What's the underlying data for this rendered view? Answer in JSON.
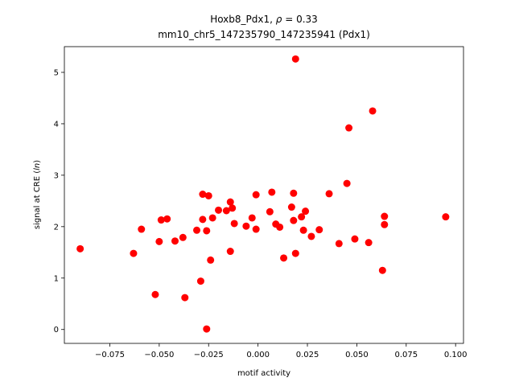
{
  "chart_data": {
    "type": "scatter",
    "title_line1": "Hoxb8_Pdx1, ρ = 0.33",
    "title_line2": "mm10_chr5_147235790_147235941 (Pdx1)",
    "xlabel": "motif activity",
    "ylabel": "signal at CRE (ln)",
    "xlim": [
      -0.098,
      0.104
    ],
    "ylim": [
      -0.27,
      5.5
    ],
    "xticks": [
      -0.075,
      -0.05,
      -0.025,
      0.0,
      0.025,
      0.05,
      0.075,
      0.1
    ],
    "xtick_labels": [
      "−0.075",
      "−0.050",
      "−0.025",
      "0.000",
      "0.025",
      "0.050",
      "0.075",
      "0.100"
    ],
    "yticks": [
      0,
      1,
      2,
      3,
      4,
      5
    ],
    "ytick_labels": [
      "0",
      "1",
      "2",
      "3",
      "4",
      "5"
    ],
    "grid": false,
    "marker_color": "#ff0000",
    "points": [
      {
        "x": -0.09,
        "y": 1.57
      },
      {
        "x": -0.063,
        "y": 1.48
      },
      {
        "x": -0.059,
        "y": 1.95
      },
      {
        "x": -0.052,
        "y": 0.68
      },
      {
        "x": -0.05,
        "y": 1.71
      },
      {
        "x": -0.049,
        "y": 2.13
      },
      {
        "x": -0.046,
        "y": 2.15
      },
      {
        "x": -0.042,
        "y": 1.72
      },
      {
        "x": -0.038,
        "y": 1.79
      },
      {
        "x": -0.037,
        "y": 0.62
      },
      {
        "x": -0.031,
        "y": 1.93
      },
      {
        "x": -0.029,
        "y": 0.94
      },
      {
        "x": -0.028,
        "y": 2.63
      },
      {
        "x": -0.028,
        "y": 2.14
      },
      {
        "x": -0.026,
        "y": 1.92
      },
      {
        "x": -0.026,
        "y": 0.01
      },
      {
        "x": -0.025,
        "y": 2.6
      },
      {
        "x": -0.024,
        "y": 1.35
      },
      {
        "x": -0.023,
        "y": 2.17
      },
      {
        "x": -0.02,
        "y": 2.32
      },
      {
        "x": -0.016,
        "y": 2.31
      },
      {
        "x": -0.014,
        "y": 2.48
      },
      {
        "x": -0.014,
        "y": 1.52
      },
      {
        "x": -0.013,
        "y": 2.36
      },
      {
        "x": -0.012,
        "y": 2.06
      },
      {
        "x": -0.006,
        "y": 2.01
      },
      {
        "x": -0.003,
        "y": 2.17
      },
      {
        "x": -0.001,
        "y": 2.62
      },
      {
        "x": -0.001,
        "y": 1.95
      },
      {
        "x": 0.006,
        "y": 2.29
      },
      {
        "x": 0.007,
        "y": 2.67
      },
      {
        "x": 0.009,
        "y": 2.05
      },
      {
        "x": 0.011,
        "y": 1.99
      },
      {
        "x": 0.013,
        "y": 1.39
      },
      {
        "x": 0.017,
        "y": 2.38
      },
      {
        "x": 0.018,
        "y": 2.12
      },
      {
        "x": 0.018,
        "y": 2.65
      },
      {
        "x": 0.019,
        "y": 1.48
      },
      {
        "x": 0.019,
        "y": 5.26
      },
      {
        "x": 0.022,
        "y": 2.19
      },
      {
        "x": 0.023,
        "y": 1.93
      },
      {
        "x": 0.024,
        "y": 2.3
      },
      {
        "x": 0.027,
        "y": 1.81
      },
      {
        "x": 0.031,
        "y": 1.94
      },
      {
        "x": 0.036,
        "y": 2.64
      },
      {
        "x": 0.041,
        "y": 1.67
      },
      {
        "x": 0.045,
        "y": 2.84
      },
      {
        "x": 0.046,
        "y": 3.92
      },
      {
        "x": 0.049,
        "y": 1.76
      },
      {
        "x": 0.056,
        "y": 1.69
      },
      {
        "x": 0.058,
        "y": 4.25
      },
      {
        "x": 0.063,
        "y": 1.15
      },
      {
        "x": 0.064,
        "y": 2.04
      },
      {
        "x": 0.064,
        "y": 2.2
      },
      {
        "x": 0.095,
        "y": 2.19
      }
    ]
  }
}
